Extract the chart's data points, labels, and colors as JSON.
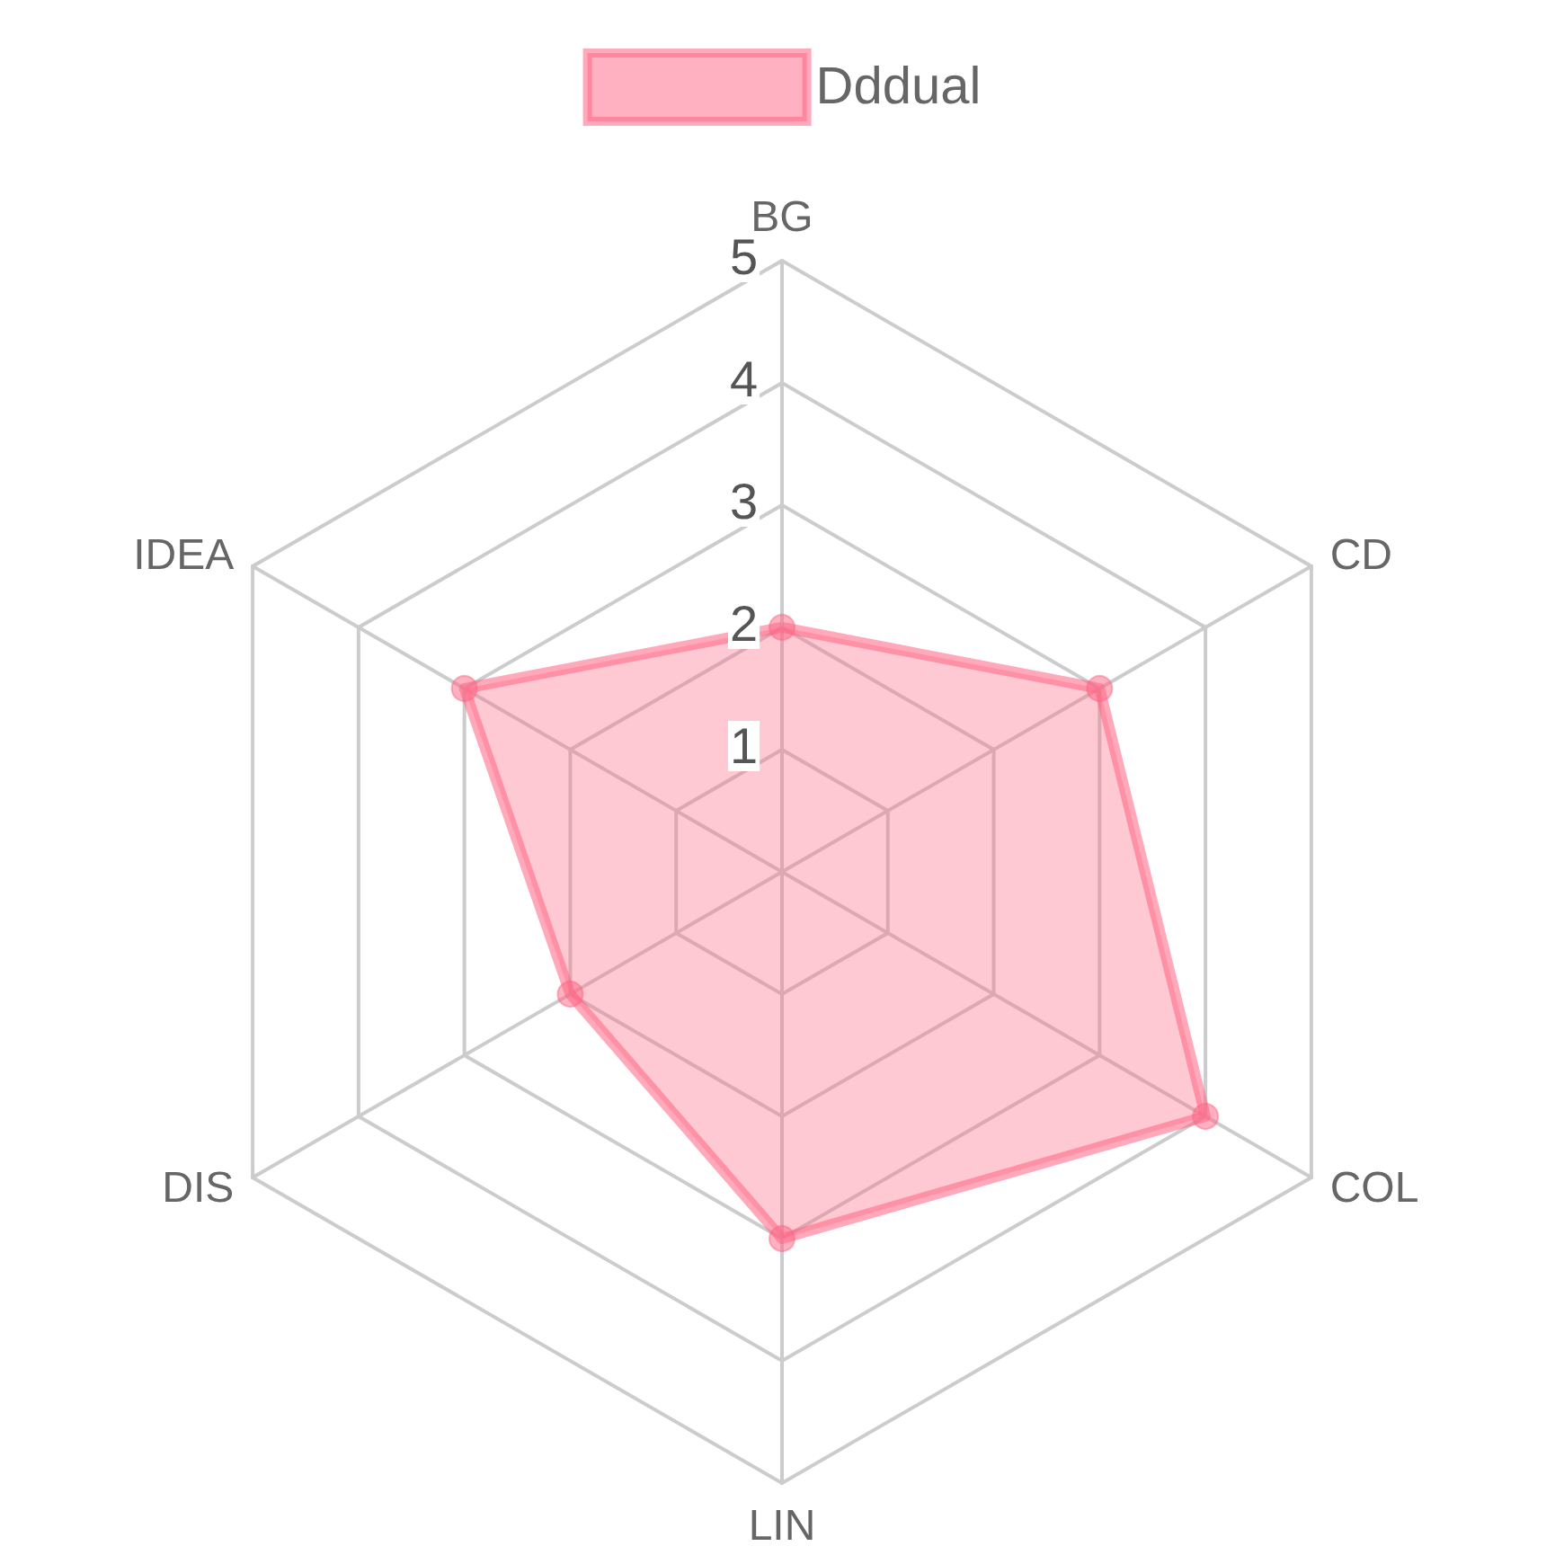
{
  "chart_data": {
    "type": "radar",
    "categories": [
      "BG",
      "CD",
      "COL",
      "LIN",
      "DIS",
      "IDEA"
    ],
    "series": [
      {
        "name": "Dddual",
        "color": "#ff6384",
        "values": [
          2,
          3,
          4,
          3,
          2,
          3
        ]
      }
    ],
    "ylim": [
      0,
      5
    ],
    "yticks": [
      1,
      2,
      3,
      4,
      5
    ],
    "grid": true,
    "legend": "top",
    "marker": "circle"
  }
}
